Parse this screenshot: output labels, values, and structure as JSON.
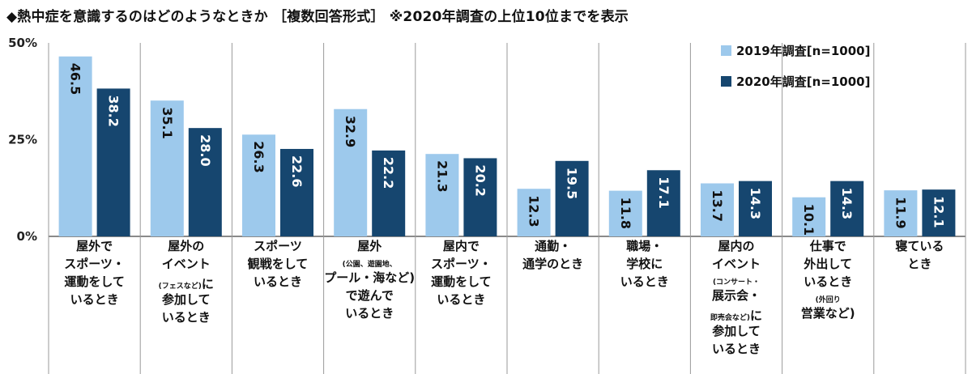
{
  "title": "◆熱中症を意識するのはどのようなときか ［複数回答形式］ ※2020年調査の上位10位までを表示",
  "chart_data": {
    "type": "bar",
    "ylim": [
      0,
      50
    ],
    "yticks": [
      "50%",
      "25%",
      "0%"
    ],
    "ytick_values": [
      50,
      25,
      0
    ],
    "grid": false,
    "legend_position": "top-right",
    "colors": {
      "2019": "#9dc9ec",
      "2020": "#16466f"
    },
    "categories": [
      [
        "屋外で",
        "スポーツ・",
        "運動をして",
        "いるとき"
      ],
      [
        "屋外の",
        "イベント",
        "(フェスなど)|に",
        "参加して",
        "いるとき"
      ],
      [
        "スポーツ",
        "観戦をして",
        "いるとき"
      ],
      [
        "屋外",
        "(公園、遊園地、",
        "プール・海など)",
        "で遊んで",
        "いるとき"
      ],
      [
        "屋内で",
        "スポーツ・",
        "運動をして",
        "いるとき"
      ],
      [
        "通勤・",
        "通学のとき"
      ],
      [
        "職場・",
        "学校に",
        "いるとき"
      ],
      [
        "屋内の",
        "イベント",
        "(コンサート・",
        "展示会・",
        "即売会など)|に",
        "参加して",
        "いるとき"
      ],
      [
        "仕事で",
        "外出して",
        "いるとき",
        "(外回り",
        "営業など)"
      ],
      [
        "寝ている",
        "とき"
      ]
    ],
    "series": [
      {
        "name": "2019年調査[n=1000]",
        "values": [
          46.5,
          35.1,
          26.3,
          32.9,
          21.3,
          12.3,
          11.8,
          13.7,
          10.1,
          11.9
        ]
      },
      {
        "name": "2020年調査[n=1000]",
        "values": [
          38.2,
          28.0,
          22.6,
          22.2,
          20.2,
          19.5,
          17.1,
          14.3,
          14.3,
          12.1
        ]
      }
    ],
    "value_labels": [
      [
        "46.5",
        "35.1",
        "26.3",
        "32.9",
        "21.3",
        "12.3",
        "11.8",
        "13.7",
        "10.1",
        "11.9"
      ],
      [
        "38.2",
        "28.0",
        "22.6",
        "22.2",
        "20.2",
        "19.5",
        "17.1",
        "14.3",
        "14.3",
        "12.1"
      ]
    ]
  }
}
